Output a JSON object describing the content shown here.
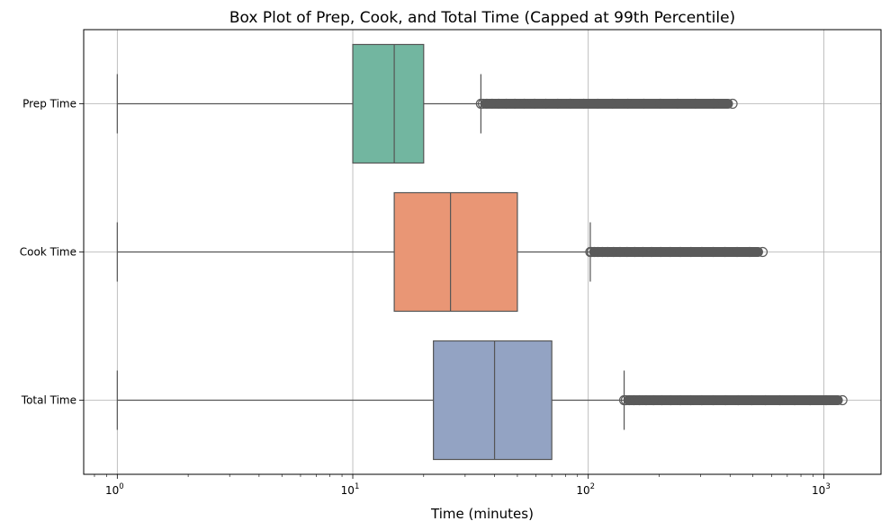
{
  "chart_data": {
    "type": "boxplot",
    "orientation": "horizontal",
    "title": "Box Plot of Prep, Cook, and Total Time (Capped at 99th Percentile)",
    "xlabel": "Time (minutes)",
    "ylabel": "",
    "xscale": "log",
    "xlim": [
      0.72,
      1750
    ],
    "xticks": [
      {
        "base": "10",
        "exp": "0",
        "value": 1
      },
      {
        "base": "10",
        "exp": "1",
        "value": 10
      },
      {
        "base": "10",
        "exp": "2",
        "value": 100
      },
      {
        "base": "10",
        "exp": "3",
        "value": 1000
      }
    ],
    "grid": true,
    "categories": [
      "Prep Time",
      "Cook Time",
      "Total Time"
    ],
    "boxes": [
      {
        "name": "Prep Time",
        "color": "#72b6a0",
        "whisker_low": 1,
        "q1": 10,
        "median": 15,
        "q3": 20,
        "whisker_high": 35,
        "outlier_min": 35,
        "outlier_max": 410
      },
      {
        "name": "Cook Time",
        "color": "#e99675",
        "whisker_low": 1,
        "q1": 15,
        "median": 26,
        "q3": 50,
        "whisker_high": 102,
        "outlier_min": 102,
        "outlier_max": 550
      },
      {
        "name": "Total Time",
        "color": "#93a3c3",
        "whisker_low": 1,
        "q1": 22,
        "median": 40,
        "q3": 70,
        "whisker_high": 142,
        "outlier_min": 142,
        "outlier_max": 1200
      }
    ],
    "outlier_color": "#5a5a5a",
    "line_color": "#555555",
    "grid_color": "#b0b0b0"
  }
}
